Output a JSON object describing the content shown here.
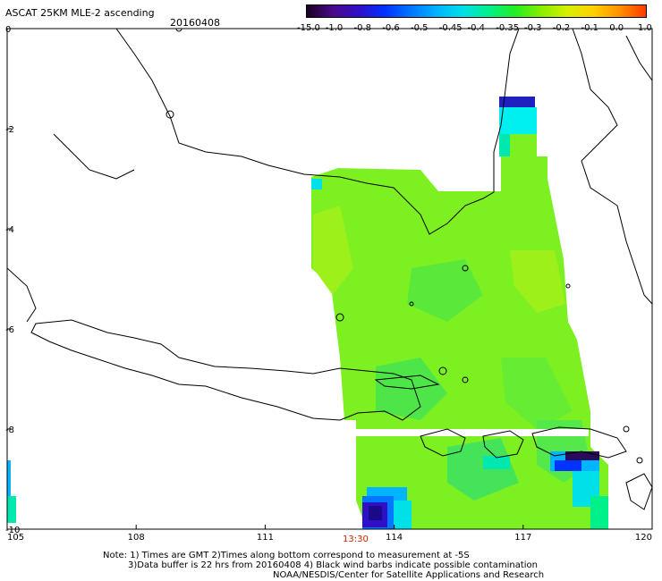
{
  "header": {
    "title": "ASCAT 25KM MLE-2 ascending",
    "date": "20160408"
  },
  "colorbar": {
    "labels": [
      "-15.0",
      "-1.0",
      "-0.8",
      "-0.6",
      "-0.5",
      "-0.45",
      "-0.4",
      "-0.35",
      "-0.3",
      "-0.2",
      "-0.1",
      "0.0",
      "1.0"
    ],
    "colors": [
      "#1a0022",
      "#4a0a8a",
      "#2f10c8",
      "#0033ff",
      "#0077ff",
      "#00b4ff",
      "#00e0e8",
      "#00f08a",
      "#22ee22",
      "#88ee00",
      "#d8f000",
      "#ffd000",
      "#ff9000",
      "#ff3a00"
    ]
  },
  "axes": {
    "x_ticks": [
      "105",
      "108",
      "111",
      "114",
      "117",
      "120"
    ],
    "y_ticks": [
      "0",
      "-2",
      "-4",
      "-6",
      "-8",
      "-10"
    ]
  },
  "time_label": "13:30",
  "notes": [
    "Note: 1) Times are GMT 2)Times along bottom correspond to measurement at -5S",
    "3)Data buffer is 22 hrs from 20160408 4) Black wind barbs indicate possible contamination",
    "NOAA/NESDIS/Center for Satellite Applications and Research"
  ]
}
